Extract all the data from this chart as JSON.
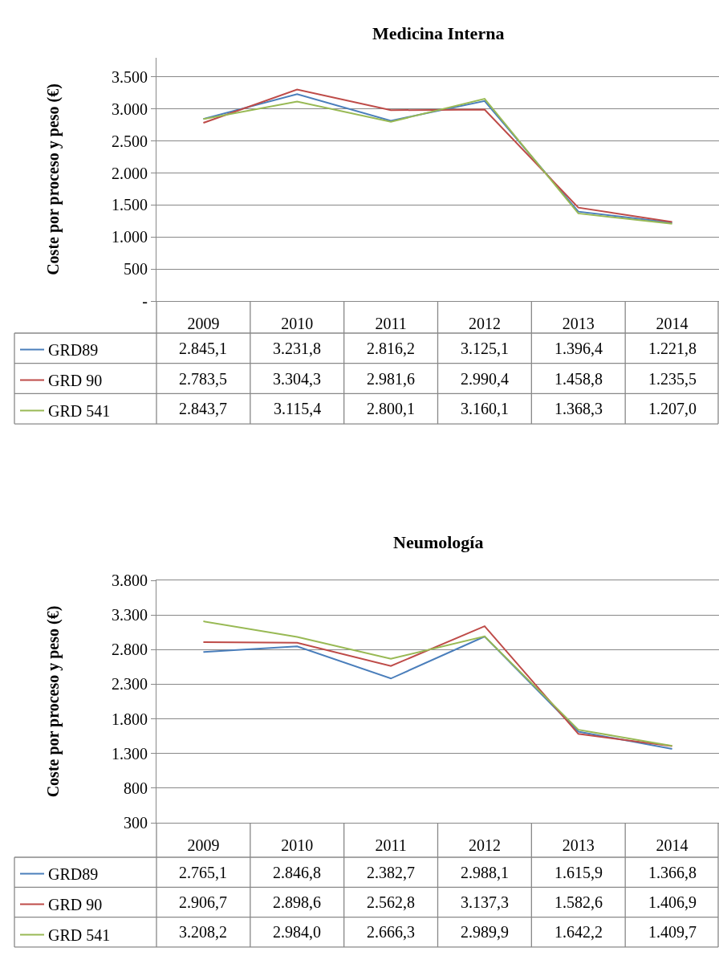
{
  "chart_data": [
    {
      "type": "line",
      "title": "Medicina Interna",
      "ylabel": "Coste por proceso y peso (€)",
      "categories": [
        "2009",
        "2010",
        "2011",
        "2012",
        "2013",
        "2014"
      ],
      "series": [
        {
          "name": "GRD89",
          "color": "#4a7ebb",
          "values": [
            2845.1,
            3231.8,
            2816.2,
            3125.1,
            1396.4,
            1221.8
          ],
          "value_labels": [
            "2.845,1",
            "3.231,8",
            "2.816,2",
            "3.125,1",
            "1.396,4",
            "1.221,8"
          ]
        },
        {
          "name": "GRD 90",
          "color": "#be4b48",
          "values": [
            2783.5,
            3304.3,
            2981.6,
            2990.4,
            1458.8,
            1235.5
          ],
          "value_labels": [
            "2.783,5",
            "3.304,3",
            "2.981,6",
            "2.990,4",
            "1.458,8",
            "1.235,5"
          ]
        },
        {
          "name": "GRD 541",
          "color": "#98b954",
          "values": [
            2843.7,
            3115.4,
            2800.1,
            3160.1,
            1368.3,
            1207.0
          ],
          "value_labels": [
            "2.843,7",
            "3.115,4",
            "2.800,1",
            "3.160,1",
            "1.368,3",
            "1.207,0"
          ]
        }
      ],
      "ylim": [
        0,
        3800
      ],
      "yticks": [
        {
          "value": 0,
          "label": "-"
        },
        500,
        {
          "value": 1000,
          "label": "1.000"
        },
        {
          "value": 1500,
          "label": "1.500"
        },
        {
          "value": 2000,
          "label": "2.000"
        },
        {
          "value": 2500,
          "label": "2.500"
        },
        {
          "value": 3000,
          "label": "3.000"
        },
        {
          "value": 3500,
          "label": "3.500"
        }
      ],
      "grid": "y",
      "legend": "bottom left"
    },
    {
      "type": "line",
      "title": "Neumología",
      "ylabel": "Coste por proceso y peso (€)",
      "categories": [
        "2009",
        "2010",
        "2011",
        "2012",
        "2013",
        "2014"
      ],
      "series": [
        {
          "name": "GRD89",
          "color": "#4a7ebb",
          "values": [
            2765.1,
            2846.8,
            2382.7,
            2988.1,
            1615.9,
            1366.8
          ],
          "value_labels": [
            "2.765,1",
            "2.846,8",
            "2.382,7",
            "2.988,1",
            "1.615,9",
            "1.366,8"
          ]
        },
        {
          "name": "GRD 90",
          "color": "#be4b48",
          "values": [
            2906.7,
            2898.6,
            2562.8,
            3137.3,
            1582.6,
            1406.9
          ],
          "value_labels": [
            "2.906,7",
            "2.898,6",
            "2.562,8",
            "3.137,3",
            "1.582,6",
            "1.406,9"
          ]
        },
        {
          "name": "GRD 541",
          "color": "#98b954",
          "values": [
            3208.2,
            2984.0,
            2666.3,
            2989.9,
            1642.2,
            1409.7
          ],
          "value_labels": [
            "3.208,2",
            "2.984,0",
            "2.666,3",
            "2.989,9",
            "1.642,2",
            "1.409,7"
          ]
        }
      ],
      "ylim": [
        300,
        3800
      ],
      "yticks": [
        300,
        800,
        {
          "value": 1300,
          "label": "1.300"
        },
        {
          "value": 1800,
          "label": "1.800"
        },
        {
          "value": 2300,
          "label": "2.300"
        },
        {
          "value": 2800,
          "label": "2.800"
        },
        {
          "value": 3300,
          "label": "3.300"
        },
        {
          "value": 3800,
          "label": "3.800"
        }
      ],
      "grid": "y",
      "legend": "bottom left"
    }
  ]
}
